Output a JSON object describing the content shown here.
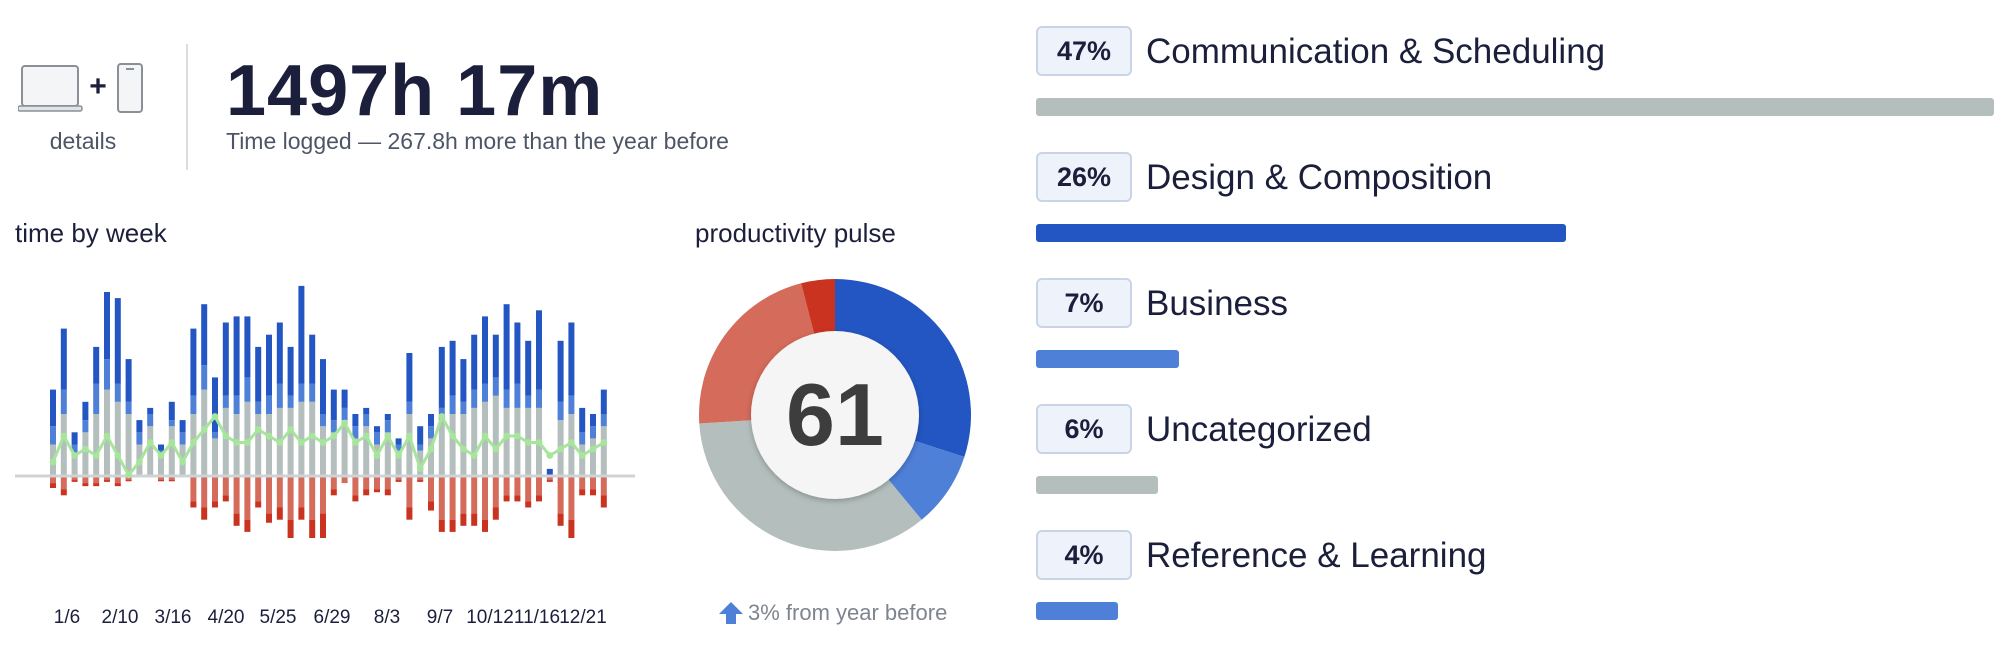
{
  "summary": {
    "devices_label": "details",
    "total_time": "1497h 17m",
    "time_logged_text": "Time logged — 267.8h more than the year before",
    "plus_sign": "+"
  },
  "colors": {
    "very_productive": "#2356c2",
    "productive": "#4f80d8",
    "neutral": "#b4bfbd",
    "distracting": "#d56b5a",
    "very_distracting": "#c93320",
    "pulse_line": "#a8e59c"
  },
  "week_chart": {
    "title": "time by week",
    "x_tick_labels": [
      "1/6",
      "2/10",
      "3/16",
      "4/20",
      "5/25",
      "6/29",
      "8/3",
      "9/7",
      "10/12",
      "11/16",
      "12/21"
    ],
    "chart_data": {
      "type": "bar",
      "series_order": [
        "neutral",
        "productive",
        "very_productive",
        "distracting",
        "very_distracting",
        "pulse"
      ],
      "weeks": [
        [
          5,
          3,
          6,
          1,
          0.8,
          2
        ],
        [
          10,
          4,
          10,
          2,
          1,
          6
        ],
        [
          3,
          2,
          2,
          0.5,
          0.3,
          3
        ],
        [
          7,
          2,
          3,
          1,
          0.5,
          4
        ],
        [
          10,
          5,
          6,
          1,
          0.5,
          3
        ],
        [
          14,
          5,
          11,
          0.5,
          0.3,
          6
        ],
        [
          12,
          3,
          14,
          1,
          0.5,
          3
        ],
        [
          10,
          2,
          7,
          0.5,
          0.2,
          0
        ],
        [
          5,
          2,
          2,
          0,
          0,
          2
        ],
        [
          8,
          2,
          1,
          0,
          0,
          5
        ],
        [
          3,
          1,
          1,
          0.5,
          0.2,
          3
        ],
        [
          8,
          1,
          3,
          0.5,
          0.2,
          5
        ],
        [
          5,
          2,
          2,
          0,
          0,
          2
        ],
        [
          10,
          3,
          11,
          4,
          1,
          5
        ],
        [
          14,
          4,
          10,
          5,
          2,
          7
        ],
        [
          6,
          1,
          9,
          4,
          1,
          9
        ],
        [
          11,
          2,
          12,
          3,
          1,
          6
        ],
        [
          10,
          3,
          13,
          6,
          2,
          5
        ],
        [
          12,
          4,
          10,
          7,
          2,
          5
        ],
        [
          10,
          2,
          9,
          4,
          1,
          7
        ],
        [
          10,
          3,
          10,
          6,
          1.5,
          6
        ],
        [
          11,
          4,
          10,
          5,
          2,
          5
        ],
        [
          11,
          2,
          8,
          7,
          3,
          7
        ],
        [
          12,
          3,
          16,
          5,
          2,
          5
        ],
        [
          12,
          3,
          8,
          7,
          3,
          6
        ],
        [
          8,
          2,
          9,
          6,
          4,
          5
        ],
        [
          7,
          2,
          5,
          2,
          1,
          6
        ],
        [
          9,
          2,
          3,
          1,
          0,
          8
        ],
        [
          6,
          2,
          2,
          3,
          1,
          5
        ],
        [
          8,
          2,
          1,
          2,
          1,
          6
        ],
        [
          5,
          2,
          1,
          2,
          0.5,
          3
        ],
        [
          7,
          2,
          1,
          2,
          1,
          6
        ],
        [
          4,
          1,
          1,
          0.5,
          0.3,
          3
        ],
        [
          10,
          2,
          8,
          5,
          2,
          6
        ],
        [
          4,
          1,
          3,
          0.5,
          0.3,
          1
        ],
        [
          6,
          2,
          2,
          4,
          1.5,
          4
        ],
        [
          9,
          2,
          10,
          7,
          2,
          9
        ],
        [
          10,
          3,
          9,
          7,
          2,
          6
        ],
        [
          10,
          2,
          7,
          6,
          2,
          4
        ],
        [
          11,
          3,
          9,
          6,
          2,
          3
        ],
        [
          12,
          3,
          11,
          7,
          2,
          6
        ],
        [
          13,
          3,
          7,
          5,
          2,
          4
        ],
        [
          11,
          3,
          14,
          3,
          1,
          6
        ],
        [
          11,
          4,
          10,
          3,
          1,
          6
        ],
        [
          11,
          2,
          9,
          4,
          1,
          5
        ],
        [
          11,
          3,
          13,
          3,
          1,
          5
        ],
        [
          0,
          0,
          1,
          0.5,
          0.3,
          3
        ],
        [
          9,
          3,
          10,
          6,
          2,
          4
        ],
        [
          10,
          3,
          12,
          7,
          3,
          5
        ],
        [
          5,
          2,
          4,
          2,
          1,
          3
        ],
        [
          6,
          2,
          2,
          2,
          1,
          4
        ],
        [
          8,
          2,
          4,
          3,
          2,
          5
        ]
      ]
    }
  },
  "pulse": {
    "title": "productivity pulse",
    "score": "61",
    "change_text": "3% from year before",
    "chart_data": {
      "type": "pie",
      "slices": [
        {
          "name": "very_productive",
          "value": 30
        },
        {
          "name": "productive",
          "value": 9
        },
        {
          "name": "neutral",
          "value": 35
        },
        {
          "name": "distracting",
          "value": 22
        },
        {
          "name": "very_distracting",
          "value": 4
        }
      ]
    }
  },
  "categories": [
    {
      "percent": "47%",
      "name": "Communication & Scheduling",
      "share": 47,
      "color": "#b4bfbd"
    },
    {
      "percent": "26%",
      "name": "Design & Composition",
      "share": 26,
      "color": "#2356c2"
    },
    {
      "percent": "7%",
      "name": "Business",
      "share": 7,
      "color": "#4f80d8"
    },
    {
      "percent": "6%",
      "name": "Uncategorized",
      "share": 6,
      "color": "#b4bfbd"
    },
    {
      "percent": "4%",
      "name": "Reference & Learning",
      "share": 4,
      "color": "#4f80d8"
    }
  ]
}
